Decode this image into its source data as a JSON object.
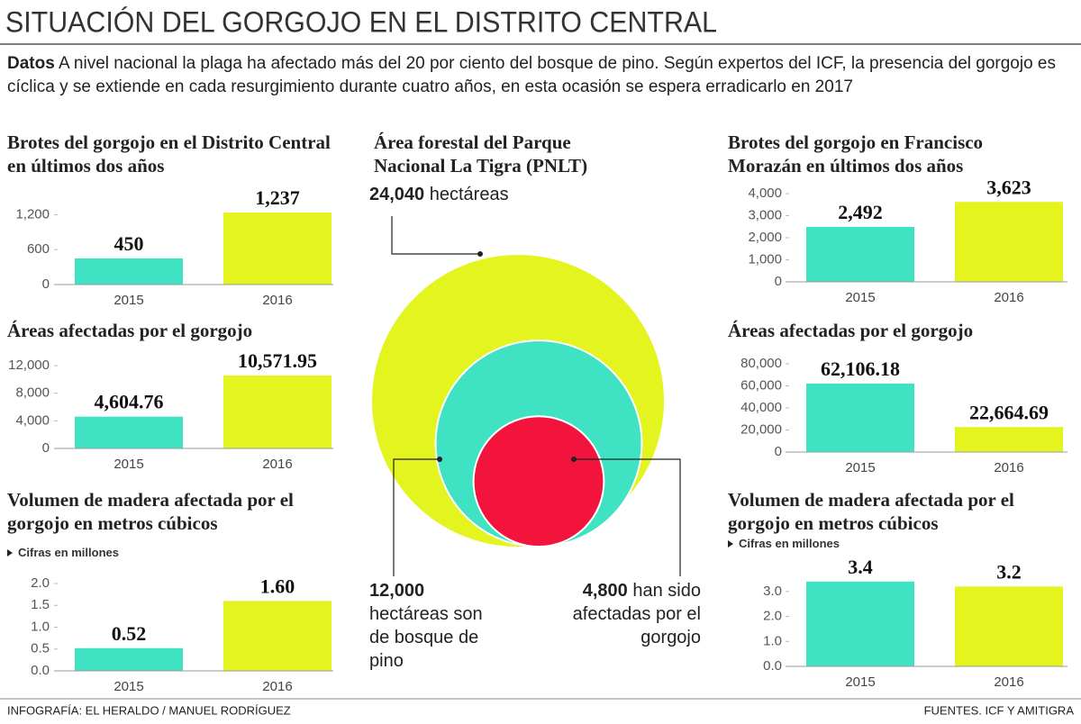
{
  "title": "SITUACIÓN DEL GORGOJO EN EL DISTRITO CENTRAL",
  "intro": {
    "lead": "Datos",
    "text": "A nivel nacional la plaga ha afectado más del 20 por ciento del bosque de pino. Según expertos del ICF, la presencia del gorgojo es cíclica y se extiende en cada resurgimiento durante cuatro años, en esta ocasión se espera erradicarlo en 2017"
  },
  "chart_data": [
    {
      "type": "bar",
      "title": "Brotes del gorgojo en el Distrito Central en últimos dos años",
      "categories": [
        "2015",
        "2016"
      ],
      "values": [
        450,
        1237
      ],
      "value_labels": [
        "450",
        "1,237"
      ],
      "colors": [
        "#3fe3c4",
        "#e3f41e"
      ],
      "ylim": [
        0,
        1300
      ],
      "yticks": [
        0,
        600,
        {
          "value": 1200,
          "label": "1,200"
        }
      ]
    },
    {
      "type": "bar",
      "title": "Áreas afectadas por el gorgojo",
      "categories": [
        "2015",
        "2016"
      ],
      "values": [
        4604.76,
        10571.95
      ],
      "value_labels": [
        "4,604.76",
        "10,571.95"
      ],
      "colors": [
        "#3fe3c4",
        "#e3f41e"
      ],
      "ylim": [
        0,
        12000
      ],
      "yticks": [
        0,
        {
          "value": 4000,
          "label": "4,000"
        },
        {
          "value": 8000,
          "label": "8,000"
        },
        {
          "value": 12000,
          "label": "12,000"
        }
      ]
    },
    {
      "type": "bar",
      "title": "Volumen de madera afectada por el gorgojo en metros cúbicos",
      "note": "Cifras en millones",
      "categories": [
        "2015",
        "2016"
      ],
      "values": [
        0.52,
        1.6
      ],
      "value_labels": [
        "0.52",
        "1.60"
      ],
      "colors": [
        "#3fe3c4",
        "#e3f41e"
      ],
      "ylim": [
        0,
        2
      ],
      "yticks": [
        {
          "value": 0,
          "label": "0.0"
        },
        0.5,
        {
          "value": 1,
          "label": "1.0"
        },
        1.5,
        {
          "value": 2,
          "label": "2.0"
        }
      ]
    },
    {
      "type": "bar",
      "title": "Brotes del gorgojo en Francisco Morazán en últimos dos años",
      "categories": [
        "2015",
        "2016"
      ],
      "values": [
        2492,
        3623
      ],
      "value_labels": [
        "2,492",
        "3,623"
      ],
      "colors": [
        "#3fe3c4",
        "#e3f41e"
      ],
      "ylim": [
        0,
        4000
      ],
      "yticks": [
        0,
        {
          "value": 1000,
          "label": "1,000"
        },
        {
          "value": 2000,
          "label": "2,000"
        },
        {
          "value": 3000,
          "label": "3,000"
        },
        {
          "value": 4000,
          "label": "4,000"
        }
      ]
    },
    {
      "type": "bar",
      "title": "Áreas afectadas por el gorgojo",
      "categories": [
        "2015",
        "2016"
      ],
      "values": [
        62106.18,
        22664.69
      ],
      "value_labels": [
        "62,106.18",
        "22,664.69"
      ],
      "colors": [
        "#3fe3c4",
        "#e3f41e"
      ],
      "ylim": [
        0,
        80000
      ],
      "yticks": [
        0,
        {
          "value": 20000,
          "label": "20,000"
        },
        {
          "value": 40000,
          "label": "40,000"
        },
        {
          "value": 60000,
          "label": "60,000"
        },
        {
          "value": 80000,
          "label": "80,000"
        }
      ]
    },
    {
      "type": "bar",
      "title": "Volumen de madera afectada por el gorgojo en metros cúbicos",
      "note": "Cifras en millones",
      "categories": [
        "2015",
        "2016"
      ],
      "values": [
        3.4,
        3.2
      ],
      "colors": [
        "#3fe3c4",
        "#e3f41e"
      ],
      "ylim": [
        0,
        3.5
      ],
      "yticks": [
        {
          "value": 0,
          "label": "0.0"
        },
        {
          "value": 1,
          "label": "1.0"
        },
        {
          "value": 2,
          "label": "2.0"
        },
        {
          "value": 3,
          "label": "3.0"
        }
      ]
    },
    {
      "type": "circles",
      "title": "Área forestal del Parque Nacional La Tigra (PNLT)",
      "values": [
        24040,
        12000,
        4800
      ],
      "value_labels": [
        "24,040",
        "12,000",
        "4,800"
      ],
      "labels": [
        "hectáreas",
        "hectáreas son de bosque de pino",
        "han sido afectadas por el gorgojo"
      ],
      "colors": [
        "#e3f41e",
        "#3fe3c4",
        "#f2143c"
      ]
    }
  ],
  "footer": {
    "credit": "INFOGRAFÍA: EL HERALDO / MANUEL RODRÍGUEZ",
    "sources": "FUENTES. ICF Y AMITIGRA"
  }
}
